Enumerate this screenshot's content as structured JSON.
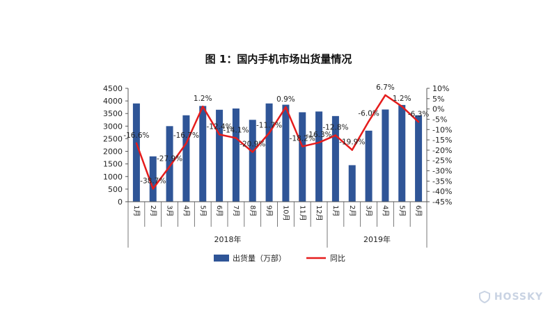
{
  "chart_data": {
    "type": "bar",
    "title": "图 1：国内手机市场出货量情况",
    "categories": [
      "1月",
      "2月",
      "3月",
      "4月",
      "5月",
      "6月",
      "7月",
      "8月",
      "9月",
      "10月",
      "11月",
      "12月",
      "1月",
      "2月",
      "3月",
      "4月",
      "5月",
      "6月"
    ],
    "groups": [
      {
        "label": "2018年",
        "start": 0,
        "end": 11
      },
      {
        "label": "2019年",
        "start": 12,
        "end": 17
      }
    ],
    "series": [
      {
        "name": "出货量（万部）",
        "type": "bar",
        "axis": "left",
        "color": "#2f5597",
        "values": [
          3900,
          1800,
          3000,
          3430,
          3800,
          3650,
          3700,
          3250,
          3900,
          3850,
          3550,
          3580,
          3400,
          1450,
          2820,
          3660,
          3840,
          3430
        ]
      },
      {
        "name": "同比",
        "type": "line",
        "axis": "right",
        "color": "#e51c1c",
        "values": [
          -16.6,
          -38.7,
          -27.9,
          -16.7,
          1.2,
          -12.4,
          -14.1,
          -20.9,
          -11.7,
          0.9,
          -18.2,
          -16.3,
          -12.8,
          -19.9,
          -6.0,
          6.7,
          1.2,
          -6.3
        ],
        "labels": [
          "-16.6%",
          "-38.7%",
          "-27.9%",
          "-16.7%",
          "1.2%",
          "-12.4%",
          "-14.1%",
          "-20.9%",
          "-11.7%",
          "0.9%",
          "-18.2%",
          "-16.3%",
          "-12.8%",
          "-19.9%",
          "-6.0%",
          "6.7%",
          "1.2%",
          "-6.3%"
        ]
      }
    ],
    "left_axis": {
      "min": 0,
      "max": 4500,
      "step": 500,
      "ticks": [
        "0",
        "500",
        "1000",
        "1500",
        "2000",
        "2500",
        "3000",
        "3500",
        "4000",
        "4500"
      ]
    },
    "right_axis": {
      "min": -45,
      "max": 10,
      "step": 5,
      "ticks": [
        "-45%",
        "-40%",
        "-35%",
        "-30%",
        "-25%",
        "-20%",
        "-15%",
        "-10%",
        "-5%",
        "0%",
        "5%",
        "10%"
      ]
    },
    "legend_position": "bottom-center"
  },
  "watermark": {
    "text": "HOSSKY"
  }
}
